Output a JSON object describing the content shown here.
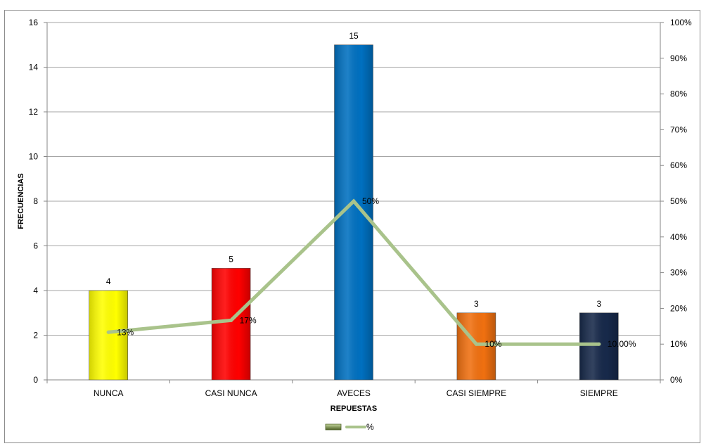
{
  "chart_data": {
    "type": "bar",
    "categories": [
      "NUNCA",
      "CASI NUNCA",
      "AVECES",
      "CASI SIEMPRE",
      "SIEMPRE"
    ],
    "series": [
      {
        "name": "",
        "type": "bar",
        "axis": "left",
        "values": [
          4,
          5,
          15,
          3,
          3
        ],
        "colors": [
          "#ffff00",
          "#ff0000",
          "#0070c0",
          "#f07010",
          "#17294a"
        ],
        "labels": [
          "4",
          "5",
          "15",
          "3",
          "3"
        ]
      },
      {
        "name": "%",
        "type": "line",
        "axis": "right",
        "values": [
          13.33,
          16.67,
          50,
          10,
          10
        ],
        "color": "#a9c38b",
        "labels": [
          "13%",
          "17%",
          "50%",
          "10%",
          "10.00%"
        ]
      }
    ],
    "xlabel": "REPUESTAS",
    "ylabel": "FRECUENCIAS",
    "ylim": [
      0,
      16
    ],
    "yticks": [
      "0",
      "2",
      "4",
      "6",
      "8",
      "10",
      "12",
      "14",
      "16"
    ],
    "y2lim": [
      0,
      100
    ],
    "y2ticks": [
      "0%",
      "10%",
      "20%",
      "30%",
      "40%",
      "50%",
      "60%",
      "70%",
      "80%",
      "90%",
      "100%"
    ],
    "grid": true,
    "legend": "bottom",
    "legend_entries": [
      "",
      "%"
    ]
  }
}
